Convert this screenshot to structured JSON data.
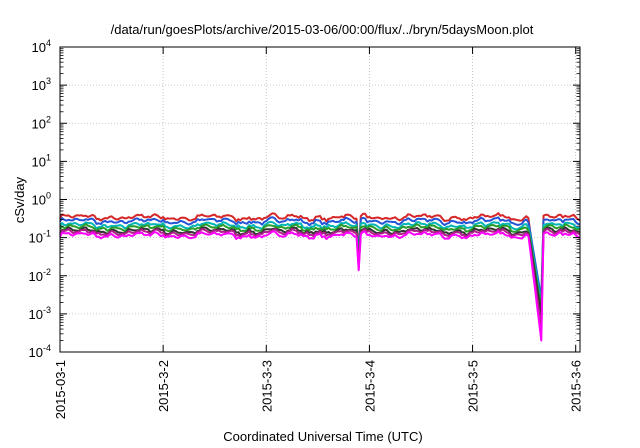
{
  "chart_data": {
    "type": "line",
    "title": "/data/run/goesPlots/archive/2015-03-06/00:00/flux/../bryn/5daysMoon.plot",
    "xlabel": "Coordinated Universal Time (UTC)",
    "ylabel": "cSv/day",
    "yscale": "log",
    "ylim": [
      0.0001,
      10000
    ],
    "y_ticks": [
      {
        "base": "10",
        "exp": "-4"
      },
      {
        "base": "10",
        "exp": "-3"
      },
      {
        "base": "10",
        "exp": "-2"
      },
      {
        "base": "10",
        "exp": "-1"
      },
      {
        "base": "10",
        "exp": "0"
      },
      {
        "base": "10",
        "exp": "1"
      },
      {
        "base": "10",
        "exp": "2"
      },
      {
        "base": "10",
        "exp": "3"
      },
      {
        "base": "10",
        "exp": "4"
      }
    ],
    "xlim": [
      "2015-03-01",
      "2015-03-06T01:00"
    ],
    "x_ticks": [
      "2015-03-1",
      "2015-3-2",
      "2015-3-3",
      "2015-3-4",
      "2015-3-5",
      "2015-3-6"
    ],
    "x_tick_dates": [
      "2015-03-01",
      "2015-03-02",
      "2015-03-03",
      "2015-03-04",
      "2015-03-05",
      "2015-03-06"
    ],
    "grid": true,
    "legend": "none",
    "sample_interval_hours": 0.5,
    "dips": [
      {
        "start": "2015-03-03T21:00",
        "min_at": "2015-03-03T21:30",
        "end": "2015-03-03T22:00",
        "min_value": 0.014
      },
      {
        "start": "2015-03-05T13:00",
        "min_at": "2015-03-05T16:00",
        "end": "2015-03-05T16:30",
        "min_value": 0.0002
      }
    ],
    "series": [
      {
        "color": "#d62728",
        "baseline": 0.34,
        "dip_min": 0.0006
      },
      {
        "color": "#2455d6",
        "baseline": 0.27,
        "dip_min": 0.0025
      },
      {
        "color": "#00b5b5",
        "baseline": 0.21,
        "dip_min": 0.0018
      },
      {
        "color": "#2a9d2a",
        "baseline": 0.18,
        "dip_min": 0.0012
      },
      {
        "color": "#333333",
        "baseline": 0.15,
        "dip_min": 0.0009
      },
      {
        "color": "#b0208a",
        "baseline": 0.135,
        "dip_min": 0.0004
      },
      {
        "color": "#ff00ff",
        "baseline": 0.115,
        "dip_min": 0.0002
      }
    ]
  }
}
